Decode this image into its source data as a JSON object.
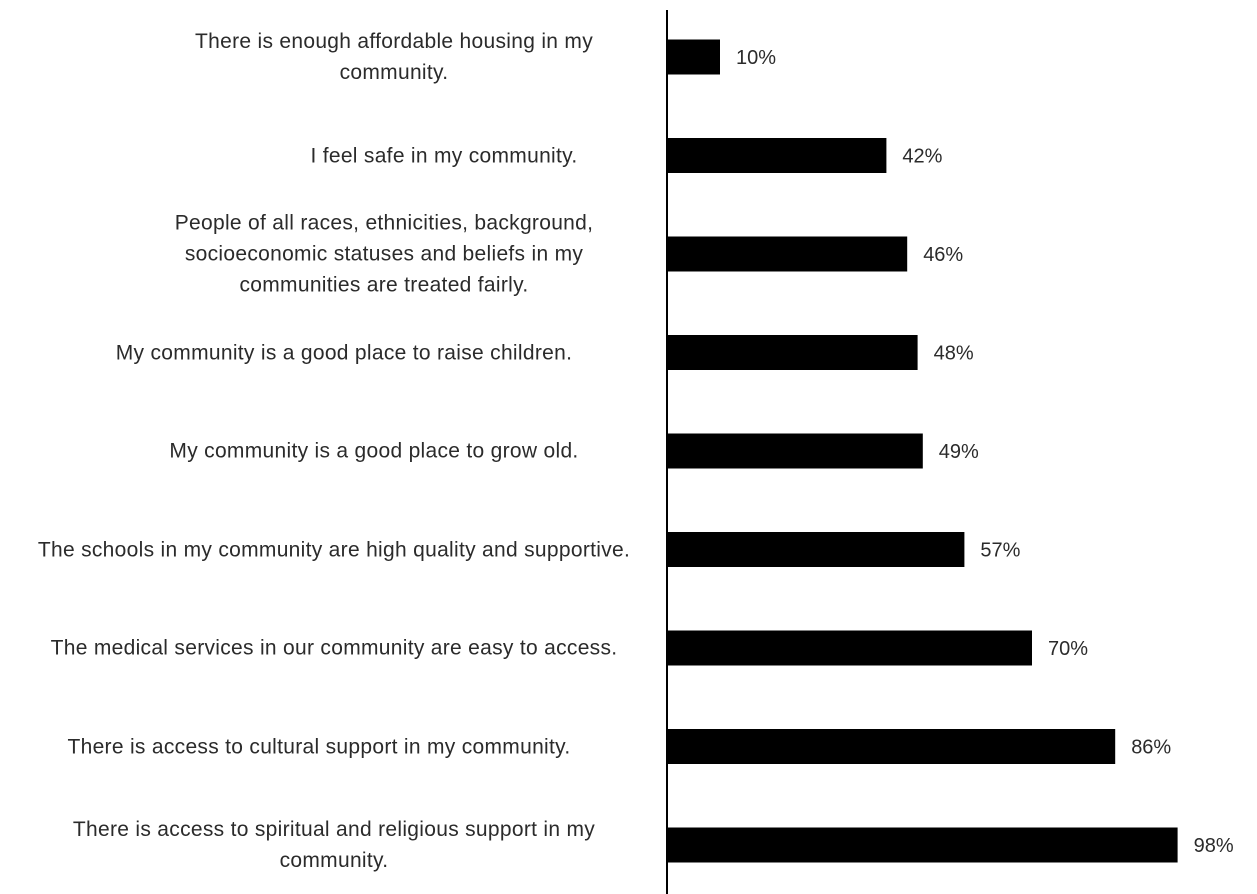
{
  "chart_data": {
    "type": "bar",
    "orientation": "horizontal",
    "categories": [
      "There is enough affordable housing in my community.",
      "I feel safe in my community.",
      "People of all races, ethnicities, background, socioeconomic statuses and beliefs in my communities are treated fairly.",
      "My community is a good place to raise children.",
      "My community is a good place to grow old.",
      "The schools in my community are high quality and supportive.",
      "The medical services in our community are easy to access.",
      "There is access to cultural support in my community.",
      "There is access to spiritual and religious support in my community."
    ],
    "values": [
      10,
      42,
      46,
      48,
      49,
      57,
      70,
      86,
      98
    ],
    "data_labels": [
      "10%",
      "42%",
      "46%",
      "48%",
      "49%",
      "57%",
      "70%",
      "86%",
      "98%"
    ],
    "bar_color": "#000000",
    "axis_color": "#000000",
    "label_color": "#2b2b2b",
    "xlim": [
      0,
      100
    ],
    "grid": false,
    "legend": "none"
  }
}
